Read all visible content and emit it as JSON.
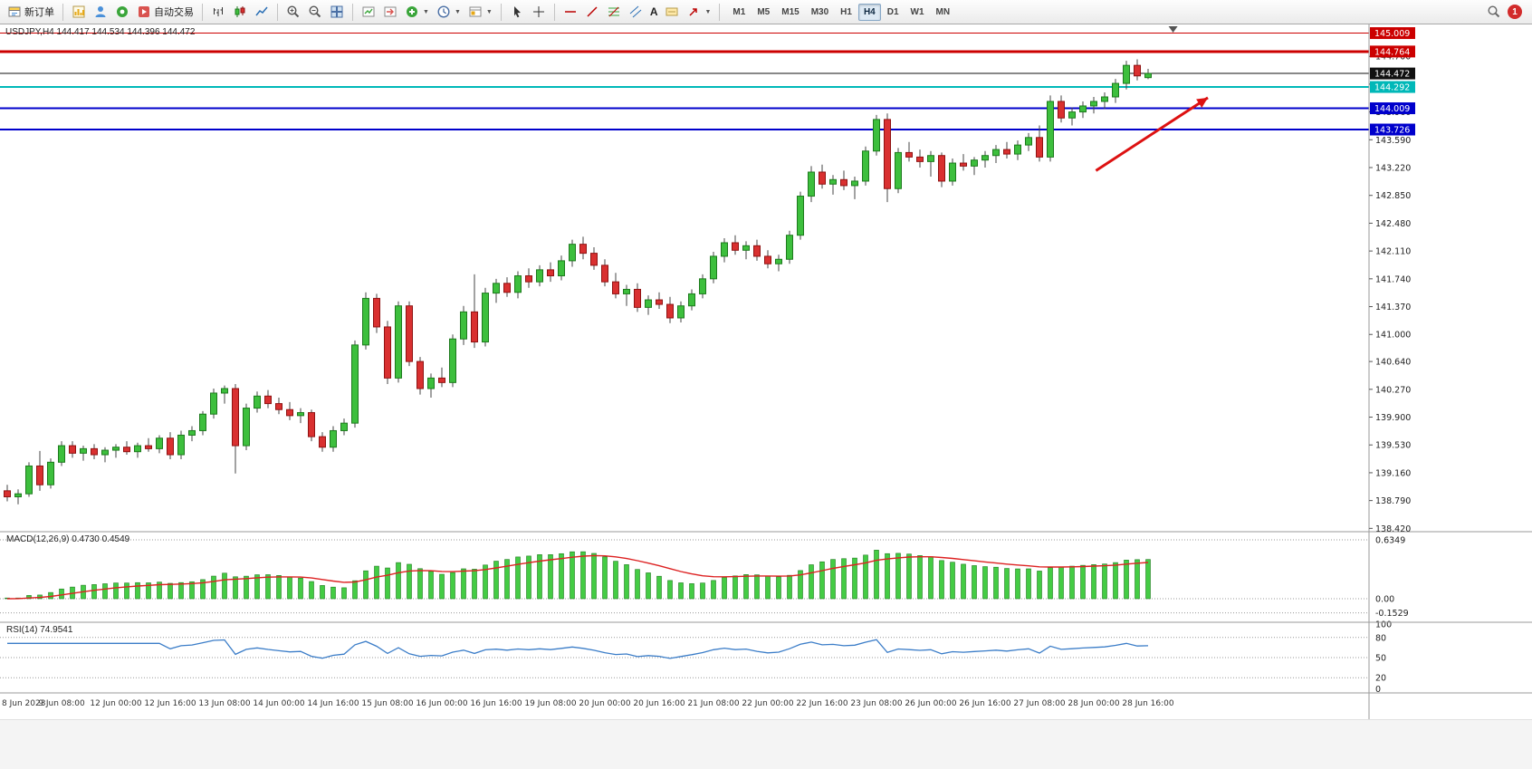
{
  "toolbar": {
    "new_order": "新订单",
    "auto_trading": "自动交易",
    "text_tool": "A",
    "timeframes": [
      "M1",
      "M5",
      "M15",
      "M30",
      "H1",
      "H4",
      "D1",
      "W1",
      "MN"
    ],
    "active_timeframe": "H4",
    "notification_count": "1"
  },
  "chart_data": {
    "type": "candlestick",
    "symbol": "USDJPY",
    "timeframe": "H4",
    "symbol_title": "USDJPY,H4 144.417 144.534 144.396 144.472",
    "current_ohlc": {
      "open": 144.417,
      "high": 144.534,
      "low": 144.396,
      "close": 144.472
    },
    "ylim": [
      138.4,
      145.1
    ],
    "colors": {
      "bull": "#3dbf3d",
      "bull_edge": "#1d7a1d",
      "bear": "#d93030",
      "bear_edge": "#8f1212",
      "wick": "#444444",
      "macd_hist": "#44cc44",
      "macd_hist_edge": "#1d7a1d",
      "macd_signal": "#dd2222",
      "rsi": "#3b7dc8"
    },
    "y_tick_labels": [
      "144.700",
      "144.330",
      "143.960",
      "143.590",
      "143.220",
      "142.850",
      "142.480",
      "142.110",
      "141.740",
      "141.370",
      "141.000",
      "140.640",
      "140.270",
      "139.900",
      "139.530",
      "139.160",
      "138.790",
      "138.420"
    ],
    "x_tick_labels": [
      "8 Jun 2023",
      "9 Jun 08:00",
      "12 Jun 00:00",
      "12 Jun 16:00",
      "13 Jun 08:00",
      "14 Jun 00:00",
      "14 Jun 16:00",
      "15 Jun 08:00",
      "16 Jun 00:00",
      "16 Jun 16:00",
      "19 Jun 08:00",
      "20 Jun 00:00",
      "20 Jun 16:00",
      "21 Jun 08:00",
      "22 Jun 00:00",
      "22 Jun 16:00",
      "23 Jun 08:00",
      "26 Jun 00:00",
      "26 Jun 16:00",
      "27 Jun 08:00",
      "28 Jun 00:00",
      "28 Jun 16:00"
    ],
    "hlines": [
      {
        "price": 145.009,
        "label": "145.009",
        "color": "#cc0000",
        "width": 1
      },
      {
        "price": 144.764,
        "label": "144.764",
        "color": "#cc0000",
        "width": 3
      },
      {
        "price": 144.472,
        "label": "144.472",
        "color": "#111111",
        "width": 1
      },
      {
        "price": 144.292,
        "label": "144.292",
        "color": "#00b8b8",
        "width": 2
      },
      {
        "price": 144.009,
        "label": "144.009",
        "color": "#0000cc",
        "width": 2
      },
      {
        "price": 143.726,
        "label": "143.726",
        "color": "#0000cc",
        "width": 2
      }
    ],
    "candles": [
      [
        138.92,
        139.0,
        138.78,
        138.84
      ],
      [
        138.84,
        138.94,
        138.74,
        138.88
      ],
      [
        138.88,
        139.3,
        138.84,
        139.25
      ],
      [
        139.25,
        139.45,
        138.92,
        139.0
      ],
      [
        139.0,
        139.35,
        138.95,
        139.3
      ],
      [
        139.3,
        139.58,
        139.25,
        139.52
      ],
      [
        139.52,
        139.58,
        139.36,
        139.42
      ],
      [
        139.42,
        139.52,
        139.32,
        139.48
      ],
      [
        139.48,
        139.54,
        139.34,
        139.4
      ],
      [
        139.4,
        139.5,
        139.3,
        139.46
      ],
      [
        139.46,
        139.54,
        139.36,
        139.5
      ],
      [
        139.5,
        139.58,
        139.4,
        139.44
      ],
      [
        139.44,
        139.56,
        139.36,
        139.52
      ],
      [
        139.52,
        139.62,
        139.44,
        139.48
      ],
      [
        139.48,
        139.66,
        139.42,
        139.62
      ],
      [
        139.62,
        139.7,
        139.34,
        139.4
      ],
      [
        139.4,
        139.72,
        139.34,
        139.66
      ],
      [
        139.66,
        139.78,
        139.58,
        139.72
      ],
      [
        139.72,
        139.98,
        139.66,
        139.94
      ],
      [
        139.94,
        140.28,
        139.88,
        140.22
      ],
      [
        140.22,
        140.32,
        140.08,
        140.28
      ],
      [
        140.28,
        140.34,
        139.15,
        139.52
      ],
      [
        139.52,
        140.08,
        139.46,
        140.02
      ],
      [
        140.02,
        140.24,
        139.96,
        140.18
      ],
      [
        140.18,
        140.26,
        140.02,
        140.08
      ],
      [
        140.08,
        140.16,
        139.94,
        140.0
      ],
      [
        140.0,
        140.1,
        139.86,
        139.92
      ],
      [
        139.92,
        140.02,
        139.82,
        139.96
      ],
      [
        139.96,
        140.0,
        139.58,
        139.64
      ],
      [
        139.64,
        139.7,
        139.44,
        139.5
      ],
      [
        139.5,
        139.78,
        139.44,
        139.72
      ],
      [
        139.72,
        139.88,
        139.66,
        139.82
      ],
      [
        139.82,
        140.92,
        139.76,
        140.86
      ],
      [
        140.86,
        141.56,
        140.8,
        141.48
      ],
      [
        141.48,
        141.54,
        141.02,
        141.1
      ],
      [
        141.1,
        141.18,
        140.34,
        140.42
      ],
      [
        140.42,
        141.44,
        140.36,
        141.38
      ],
      [
        141.38,
        141.44,
        140.58,
        140.64
      ],
      [
        140.64,
        140.7,
        140.2,
        140.28
      ],
      [
        140.28,
        140.48,
        140.16,
        140.42
      ],
      [
        140.42,
        140.56,
        140.3,
        140.36
      ],
      [
        140.36,
        141.0,
        140.3,
        140.94
      ],
      [
        140.94,
        141.38,
        140.86,
        141.3
      ],
      [
        141.3,
        141.8,
        140.82,
        140.9
      ],
      [
        140.9,
        141.62,
        140.84,
        141.55
      ],
      [
        141.55,
        141.74,
        141.42,
        141.68
      ],
      [
        141.68,
        141.76,
        141.5,
        141.56
      ],
      [
        141.56,
        141.84,
        141.48,
        141.78
      ],
      [
        141.78,
        141.88,
        141.62,
        141.7
      ],
      [
        141.7,
        141.92,
        141.64,
        141.86
      ],
      [
        141.86,
        141.96,
        141.7,
        141.78
      ],
      [
        141.78,
        142.05,
        141.72,
        141.98
      ],
      [
        141.98,
        142.26,
        141.9,
        142.2
      ],
      [
        142.2,
        142.3,
        142.0,
        142.08
      ],
      [
        142.08,
        142.16,
        141.86,
        141.92
      ],
      [
        141.92,
        142.0,
        141.64,
        141.7
      ],
      [
        141.7,
        141.82,
        141.48,
        141.54
      ],
      [
        141.54,
        141.66,
        141.38,
        141.6
      ],
      [
        141.6,
        141.68,
        141.3,
        141.36
      ],
      [
        141.36,
        141.52,
        141.26,
        141.46
      ],
      [
        141.46,
        141.56,
        141.34,
        141.4
      ],
      [
        141.4,
        141.5,
        141.15,
        141.22
      ],
      [
        141.22,
        141.44,
        141.16,
        141.38
      ],
      [
        141.38,
        141.6,
        141.32,
        141.54
      ],
      [
        141.54,
        141.8,
        141.48,
        141.74
      ],
      [
        141.74,
        142.1,
        141.68,
        142.04
      ],
      [
        142.04,
        142.28,
        141.96,
        142.22
      ],
      [
        142.22,
        142.32,
        142.06,
        142.12
      ],
      [
        142.12,
        142.24,
        142.0,
        142.18
      ],
      [
        142.18,
        142.26,
        141.98,
        142.04
      ],
      [
        142.04,
        142.12,
        141.88,
        141.94
      ],
      [
        141.94,
        142.06,
        141.84,
        142.0
      ],
      [
        142.0,
        142.38,
        141.94,
        142.32
      ],
      [
        142.32,
        142.9,
        142.26,
        142.84
      ],
      [
        142.84,
        143.24,
        142.76,
        143.16
      ],
      [
        143.16,
        143.26,
        142.94,
        143.0
      ],
      [
        143.0,
        143.12,
        142.86,
        143.06
      ],
      [
        143.06,
        143.18,
        142.92,
        142.98
      ],
      [
        142.98,
        143.1,
        142.8,
        143.04
      ],
      [
        143.04,
        143.5,
        142.98,
        143.44
      ],
      [
        143.44,
        143.92,
        143.38,
        143.86
      ],
      [
        143.86,
        143.94,
        142.76,
        142.94
      ],
      [
        142.94,
        143.48,
        142.88,
        143.42
      ],
      [
        143.42,
        143.56,
        143.3,
        143.36
      ],
      [
        143.36,
        143.46,
        143.22,
        143.3
      ],
      [
        143.3,
        143.44,
        143.1,
        143.38
      ],
      [
        143.38,
        143.42,
        142.96,
        143.04
      ],
      [
        143.04,
        143.34,
        142.98,
        143.28
      ],
      [
        143.28,
        143.4,
        143.18,
        143.24
      ],
      [
        143.24,
        143.36,
        143.12,
        143.32
      ],
      [
        143.32,
        143.44,
        143.22,
        143.38
      ],
      [
        143.38,
        143.52,
        143.28,
        143.46
      ],
      [
        143.46,
        143.56,
        143.34,
        143.4
      ],
      [
        143.4,
        143.58,
        143.32,
        143.52
      ],
      [
        143.52,
        143.68,
        143.44,
        143.62
      ],
      [
        143.62,
        143.78,
        143.3,
        143.36
      ],
      [
        143.36,
        144.18,
        143.3,
        144.1
      ],
      [
        144.1,
        144.18,
        143.82,
        143.88
      ],
      [
        143.88,
        144.02,
        143.78,
        143.96
      ],
      [
        143.96,
        144.1,
        143.88,
        144.04
      ],
      [
        144.04,
        144.16,
        143.94,
        144.1
      ],
      [
        144.1,
        144.22,
        144.0,
        144.16
      ],
      [
        144.16,
        144.4,
        144.08,
        144.34
      ],
      [
        144.34,
        144.64,
        144.26,
        144.58
      ],
      [
        144.58,
        144.66,
        144.38,
        144.44
      ],
      [
        144.417,
        144.534,
        144.396,
        144.472
      ]
    ],
    "indicators": {
      "macd": {
        "label": "MACD(12,26,9) 0.4730 0.4549",
        "params": [
          12,
          26,
          9
        ],
        "values": [
          0.473,
          0.4549
        ],
        "axis": [
          "0.6349",
          "0.00",
          "-0.1529"
        ]
      },
      "rsi": {
        "label": "RSI(14) 74.9541",
        "period": 14,
        "value": 74.9541,
        "axis": [
          "100",
          "80",
          "50",
          "20",
          "0"
        ],
        "levels": [
          80,
          50,
          20
        ]
      }
    },
    "annotations": {
      "arrow": {
        "from_index": 100.2,
        "from_price": 143.18,
        "to_index": 110.5,
        "to_price": 144.15,
        "color": "#dd1111"
      },
      "shift_marker_index": 107.3
    }
  }
}
